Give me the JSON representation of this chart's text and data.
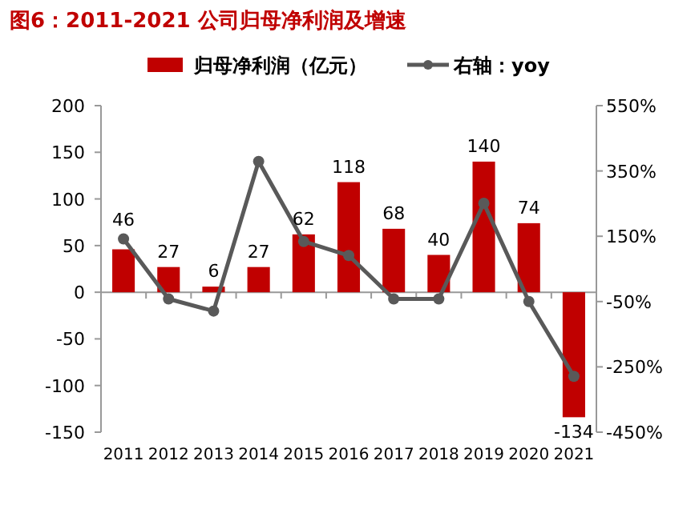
{
  "chart_data": {
    "type": "bar",
    "title": "图6：2011-2021 公司归母净利润及增速",
    "categories": [
      "2011",
      "2012",
      "2013",
      "2014",
      "2015",
      "2016",
      "2017",
      "2018",
      "2019",
      "2020",
      "2021"
    ],
    "series": [
      {
        "name": "归母净利润（亿元）",
        "color": "#c00000",
        "values": [
          46,
          27,
          6,
          27,
          62,
          118,
          68,
          40,
          140,
          74,
          -134
        ],
        "value_labels": [
          "46",
          "27",
          "6",
          "27",
          "62",
          "118",
          "68",
          "40",
          "140",
          "74",
          "-134"
        ]
      },
      {
        "name": "右轴：yoy",
        "type": "line",
        "axis": "y2",
        "color": "#595959",
        "marker": "circle",
        "values": [
          142,
          -42,
          -79,
          379,
          134,
          91,
          -42,
          -42,
          251,
          -50,
          -279
        ]
      }
    ],
    "ylim": [
      -150,
      200
    ],
    "yticks": [
      -150,
      -100,
      -50,
      0,
      50,
      100,
      150,
      200
    ],
    "y2lim": [
      -450,
      550
    ],
    "y2ticks": [
      {
        "value": -450,
        "label": "-450%"
      },
      {
        "value": -250,
        "label": "-250%"
      },
      {
        "value": -50,
        "label": "-50%"
      },
      {
        "value": 150,
        "label": "150%"
      },
      {
        "value": 350,
        "label": "350%"
      },
      {
        "value": 550,
        "label": "550%"
      }
    ],
    "legend": "top"
  }
}
